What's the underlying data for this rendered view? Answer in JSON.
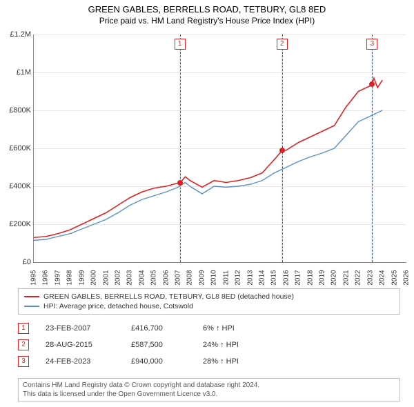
{
  "title": "GREEN GABLES, BERRELLS ROAD, TETBURY, GL8 8ED",
  "subtitle": "Price paid vs. HM Land Registry's House Price Index (HPI)",
  "chart": {
    "type": "line",
    "background_color": "#ffffff",
    "grid_color": "#e6e6e6",
    "band_color": "#eaf2fb",
    "x": {
      "min": 1995,
      "max": 2026,
      "step": 1
    },
    "y": {
      "min": 0,
      "max": 1200000,
      "step": 200000,
      "tick_labels": [
        "£0",
        "£200K",
        "£400K",
        "£600K",
        "£800K",
        "£1M",
        "£1.2M"
      ]
    },
    "bands": [
      {
        "from": 2007.05,
        "to": 2007.25
      },
      {
        "from": 2015.55,
        "to": 2015.75
      },
      {
        "from": 2023.05,
        "to": 2023.25
      }
    ],
    "dash_x": [
      2007.15,
      2015.65,
      2023.15
    ],
    "markers": [
      {
        "n": "1",
        "x": 2007.15,
        "y": 416700
      },
      {
        "n": "2",
        "x": 2015.65,
        "y": 587500
      },
      {
        "n": "3",
        "x": 2023.15,
        "y": 940000
      }
    ],
    "series": [
      {
        "name": "GREEN GABLES, BERRELLS ROAD, TETBURY, GL8 8ED (detached house)",
        "color": "#e02020",
        "width": 1.6,
        "points": [
          [
            1995,
            130000
          ],
          [
            1996,
            135000
          ],
          [
            1997,
            150000
          ],
          [
            1998,
            170000
          ],
          [
            1999,
            200000
          ],
          [
            2000,
            230000
          ],
          [
            2001,
            260000
          ],
          [
            2002,
            300000
          ],
          [
            2003,
            340000
          ],
          [
            2004,
            370000
          ],
          [
            2005,
            390000
          ],
          [
            2006,
            400000
          ],
          [
            2007,
            416700
          ],
          [
            2007.15,
            416700
          ],
          [
            2007.6,
            450000
          ],
          [
            2008,
            430000
          ],
          [
            2009,
            395000
          ],
          [
            2010,
            430000
          ],
          [
            2011,
            420000
          ],
          [
            2012,
            430000
          ],
          [
            2013,
            445000
          ],
          [
            2014,
            470000
          ],
          [
            2015,
            540000
          ],
          [
            2015.65,
            587500
          ],
          [
            2016,
            590000
          ],
          [
            2017,
            630000
          ],
          [
            2018,
            660000
          ],
          [
            2019,
            690000
          ],
          [
            2020,
            720000
          ],
          [
            2021,
            820000
          ],
          [
            2022,
            900000
          ],
          [
            2023,
            930000
          ],
          [
            2023.15,
            940000
          ],
          [
            2023.3,
            970000
          ],
          [
            2023.6,
            920000
          ],
          [
            2024,
            960000
          ]
        ]
      },
      {
        "name": "HPI: Average price, detached house, Cotswold",
        "color": "#5b8fc7",
        "width": 1.4,
        "points": [
          [
            1995,
            115000
          ],
          [
            1996,
            120000
          ],
          [
            1997,
            135000
          ],
          [
            1998,
            150000
          ],
          [
            1999,
            175000
          ],
          [
            2000,
            200000
          ],
          [
            2001,
            225000
          ],
          [
            2002,
            260000
          ],
          [
            2003,
            300000
          ],
          [
            2004,
            330000
          ],
          [
            2005,
            350000
          ],
          [
            2006,
            370000
          ],
          [
            2007,
            395000
          ],
          [
            2007.6,
            420000
          ],
          [
            2008,
            400000
          ],
          [
            2009,
            360000
          ],
          [
            2010,
            400000
          ],
          [
            2011,
            395000
          ],
          [
            2012,
            400000
          ],
          [
            2013,
            410000
          ],
          [
            2014,
            430000
          ],
          [
            2015,
            470000
          ],
          [
            2016,
            500000
          ],
          [
            2017,
            530000
          ],
          [
            2018,
            555000
          ],
          [
            2019,
            575000
          ],
          [
            2020,
            600000
          ],
          [
            2021,
            670000
          ],
          [
            2022,
            740000
          ],
          [
            2023,
            770000
          ],
          [
            2024,
            800000
          ]
        ]
      }
    ]
  },
  "legend": {
    "s0": "GREEN GABLES, BERRELLS ROAD, TETBURY, GL8 8ED (detached house)",
    "s1": "HPI: Average price, detached house, Cotswold"
  },
  "rows": [
    {
      "n": "1",
      "date": "23-FEB-2007",
      "price": "£416,700",
      "pct": "6% ↑ HPI"
    },
    {
      "n": "2",
      "date": "28-AUG-2015",
      "price": "£587,500",
      "pct": "24% ↑ HPI"
    },
    {
      "n": "3",
      "date": "24-FEB-2023",
      "price": "£940,000",
      "pct": "28% ↑ HPI"
    }
  ],
  "footer": {
    "l1": "Contains HM Land Registry data © Crown copyright and database right 2024.",
    "l2": "This data is licensed under the Open Government Licence v3.0."
  }
}
